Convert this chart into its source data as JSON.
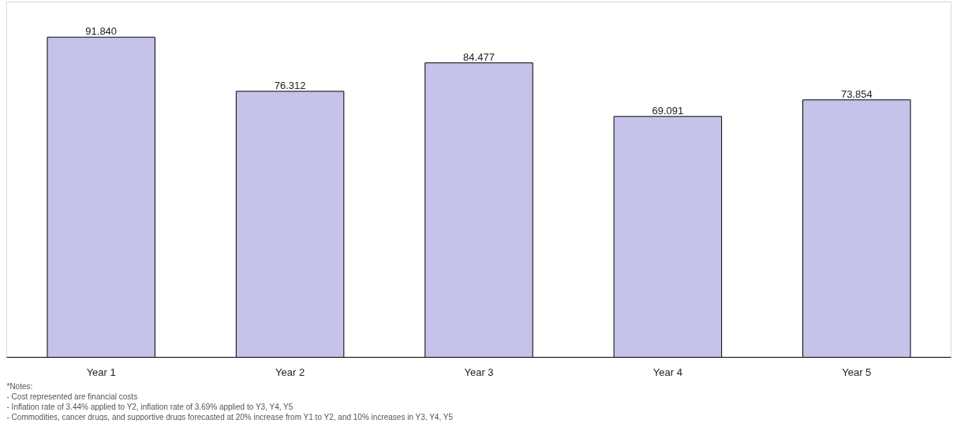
{
  "chart_data": {
    "type": "bar",
    "categories": [
      "Year 1",
      "Year 2",
      "Year 3",
      "Year 4",
      "Year 5"
    ],
    "values": [
      91.84,
      76.312,
      84.477,
      69.091,
      73.854
    ],
    "value_labels": [
      "91.840",
      "76.312",
      "84.477",
      "69.091",
      "73.854"
    ],
    "color": "#c5c3ea",
    "annotations": [
      "*Notes:",
      "-   Cost represented are financial costs",
      "-   Inflation rate of 3.44% applied to Y2, inflation rate of 3.69% applied to Y3, Y4, Y5",
      "-   Commodities, cancer drugs, and supportive drugs forecasted at 20% increase from Y1 to Y2, and 10% increases in Y3, Y4, Y5"
    ]
  }
}
